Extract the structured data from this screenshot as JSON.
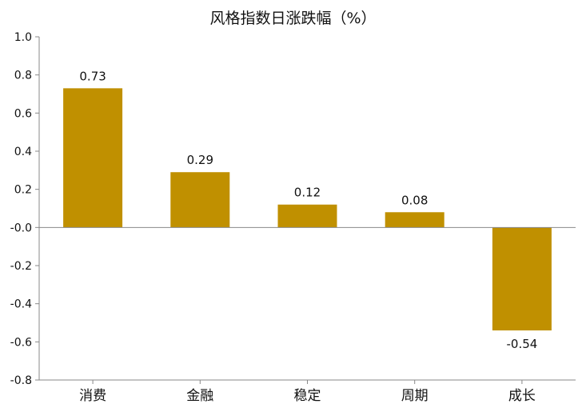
{
  "chart_data": {
    "type": "bar",
    "title": "风格指数日涨跌幅（%）",
    "categories": [
      "消费",
      "金融",
      "稳定",
      "周期",
      "成长"
    ],
    "values": [
      0.73,
      0.29,
      0.12,
      0.08,
      -0.54
    ],
    "data_labels": [
      "0.73",
      "0.29",
      "0.12",
      "0.08",
      "-0.54"
    ],
    "ylim": [
      -0.8,
      1.0
    ],
    "yticks": [
      1.0,
      0.8,
      0.6,
      0.4,
      0.2,
      -0.0,
      -0.2,
      -0.4,
      -0.6,
      -0.8
    ],
    "ytick_labels": [
      "1.0",
      "0.8",
      "0.6",
      "0.4",
      "0.2",
      "-0.0",
      "-0.2",
      "-0.4",
      "-0.6",
      "-0.8"
    ],
    "xlabel": "",
    "ylabel": "",
    "grid": false,
    "bar_color": "#C09000",
    "axis_color": "#888888"
  }
}
